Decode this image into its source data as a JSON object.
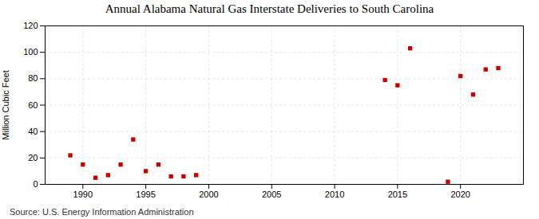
{
  "chart_data": {
    "type": "scatter",
    "title": "Annual Alabama Natural Gas Interstate Deliveries to South Carolina",
    "ylabel": "Million Cubic Feet",
    "source": "Source: U.S. Energy Information Administration",
    "x": [
      1989,
      1990,
      1991,
      1992,
      1993,
      1994,
      1995,
      1996,
      1997,
      1998,
      1999,
      2014,
      2015,
      2016,
      2019,
      2020,
      2021,
      2022,
      2023
    ],
    "values": [
      22,
      15,
      5,
      7,
      15,
      34,
      10,
      15,
      6,
      6,
      7,
      79,
      75,
      103,
      2,
      82,
      68,
      87,
      88
    ],
    "color": "#cc0000",
    "marker": "square",
    "xlim": [
      1987,
      2025
    ],
    "ylim": [
      0,
      120
    ],
    "xticks": [
      1990,
      1995,
      2000,
      2005,
      2010,
      2015,
      2020
    ],
    "yticks": [
      0,
      20,
      40,
      60,
      80,
      100,
      120
    ],
    "grid": true
  }
}
